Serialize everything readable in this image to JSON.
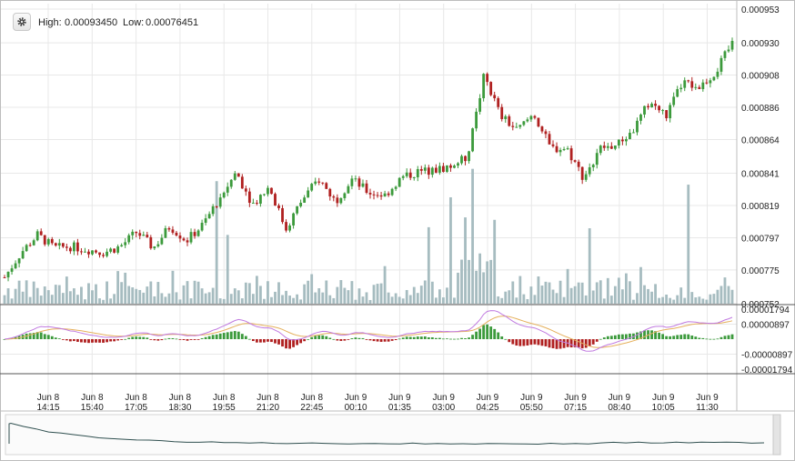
{
  "header": {
    "settings_icon": "gear-icon",
    "high_label": "High:",
    "high_value": "0.00093450",
    "low_label": "Low:",
    "low_value": "0.00076451"
  },
  "chart_data": [
    {
      "type": "candlestick",
      "y_ticks": [
        "0.000953",
        "0.000930",
        "0.000908",
        "0.000886",
        "0.000864",
        "0.000841",
        "0.000819",
        "0.000797",
        "0.000775",
        "0.000752"
      ],
      "ylim": [
        0.000752,
        0.000953
      ],
      "x_ticks": [
        {
          "date": "Jun 8",
          "time": "14:15"
        },
        {
          "date": "Jun 8",
          "time": "15:40"
        },
        {
          "date": "Jun 8",
          "time": "17:05"
        },
        {
          "date": "Jun 8",
          "time": "18:30"
        },
        {
          "date": "Jun 8",
          "time": "19:55"
        },
        {
          "date": "Jun 8",
          "time": "21:20"
        },
        {
          "date": "Jun 8",
          "time": "22:45"
        },
        {
          "date": "Jun 9",
          "time": "00:10"
        },
        {
          "date": "Jun 9",
          "time": "01:35"
        },
        {
          "date": "Jun 9",
          "time": "03:00"
        },
        {
          "date": "Jun 9",
          "time": "04:25"
        },
        {
          "date": "Jun 9",
          "time": "05:50"
        },
        {
          "date": "Jun 9",
          "time": "07:15"
        },
        {
          "date": "Jun 9",
          "time": "08:40"
        },
        {
          "date": "Jun 9",
          "time": "10:05"
        },
        {
          "date": "Jun 9",
          "time": "11:30"
        }
      ],
      "close_path": [
        0.00077,
        0.000787,
        0.000799,
        0.00079,
        0.000791,
        0.000789,
        0.000787,
        0.000791,
        0.000801,
        0.00079,
        0.000805,
        0.000795,
        0.000806,
        0.000824,
        0.000842,
        0.00082,
        0.000832,
        0.000803,
        0.000823,
        0.000837,
        0.000822,
        0.000837,
        0.000828,
        0.000826,
        0.000838,
        0.000842,
        0.000843,
        0.000846,
        0.000852,
        0.000908,
        0.00088,
        0.00087,
        0.000882,
        0.000858,
        0.000858,
        0.000838,
        0.000858,
        0.00086,
        0.00087,
        0.00089,
        0.00088,
        0.000903,
        0.0009,
        0.00091,
        0.00093
      ],
      "colors": {
        "up": "#3c9a3c",
        "down": "#b02020",
        "volume": "#a6bcc0",
        "grid": "#e8e8e8"
      }
    },
    {
      "type": "macd",
      "y_ticks": [
        "0.00001794",
        "0.00000897",
        "-0.00000897",
        "-0.00001794"
      ],
      "ylim": [
        -1.794e-05,
        1.794e-05
      ],
      "colors": {
        "pos": "#3c9a3c",
        "neg": "#b02020",
        "signal": "#e5b05c",
        "macd": "#c07ae0"
      }
    }
  ],
  "navigator": {
    "line_color": "#2f4f4f"
  }
}
